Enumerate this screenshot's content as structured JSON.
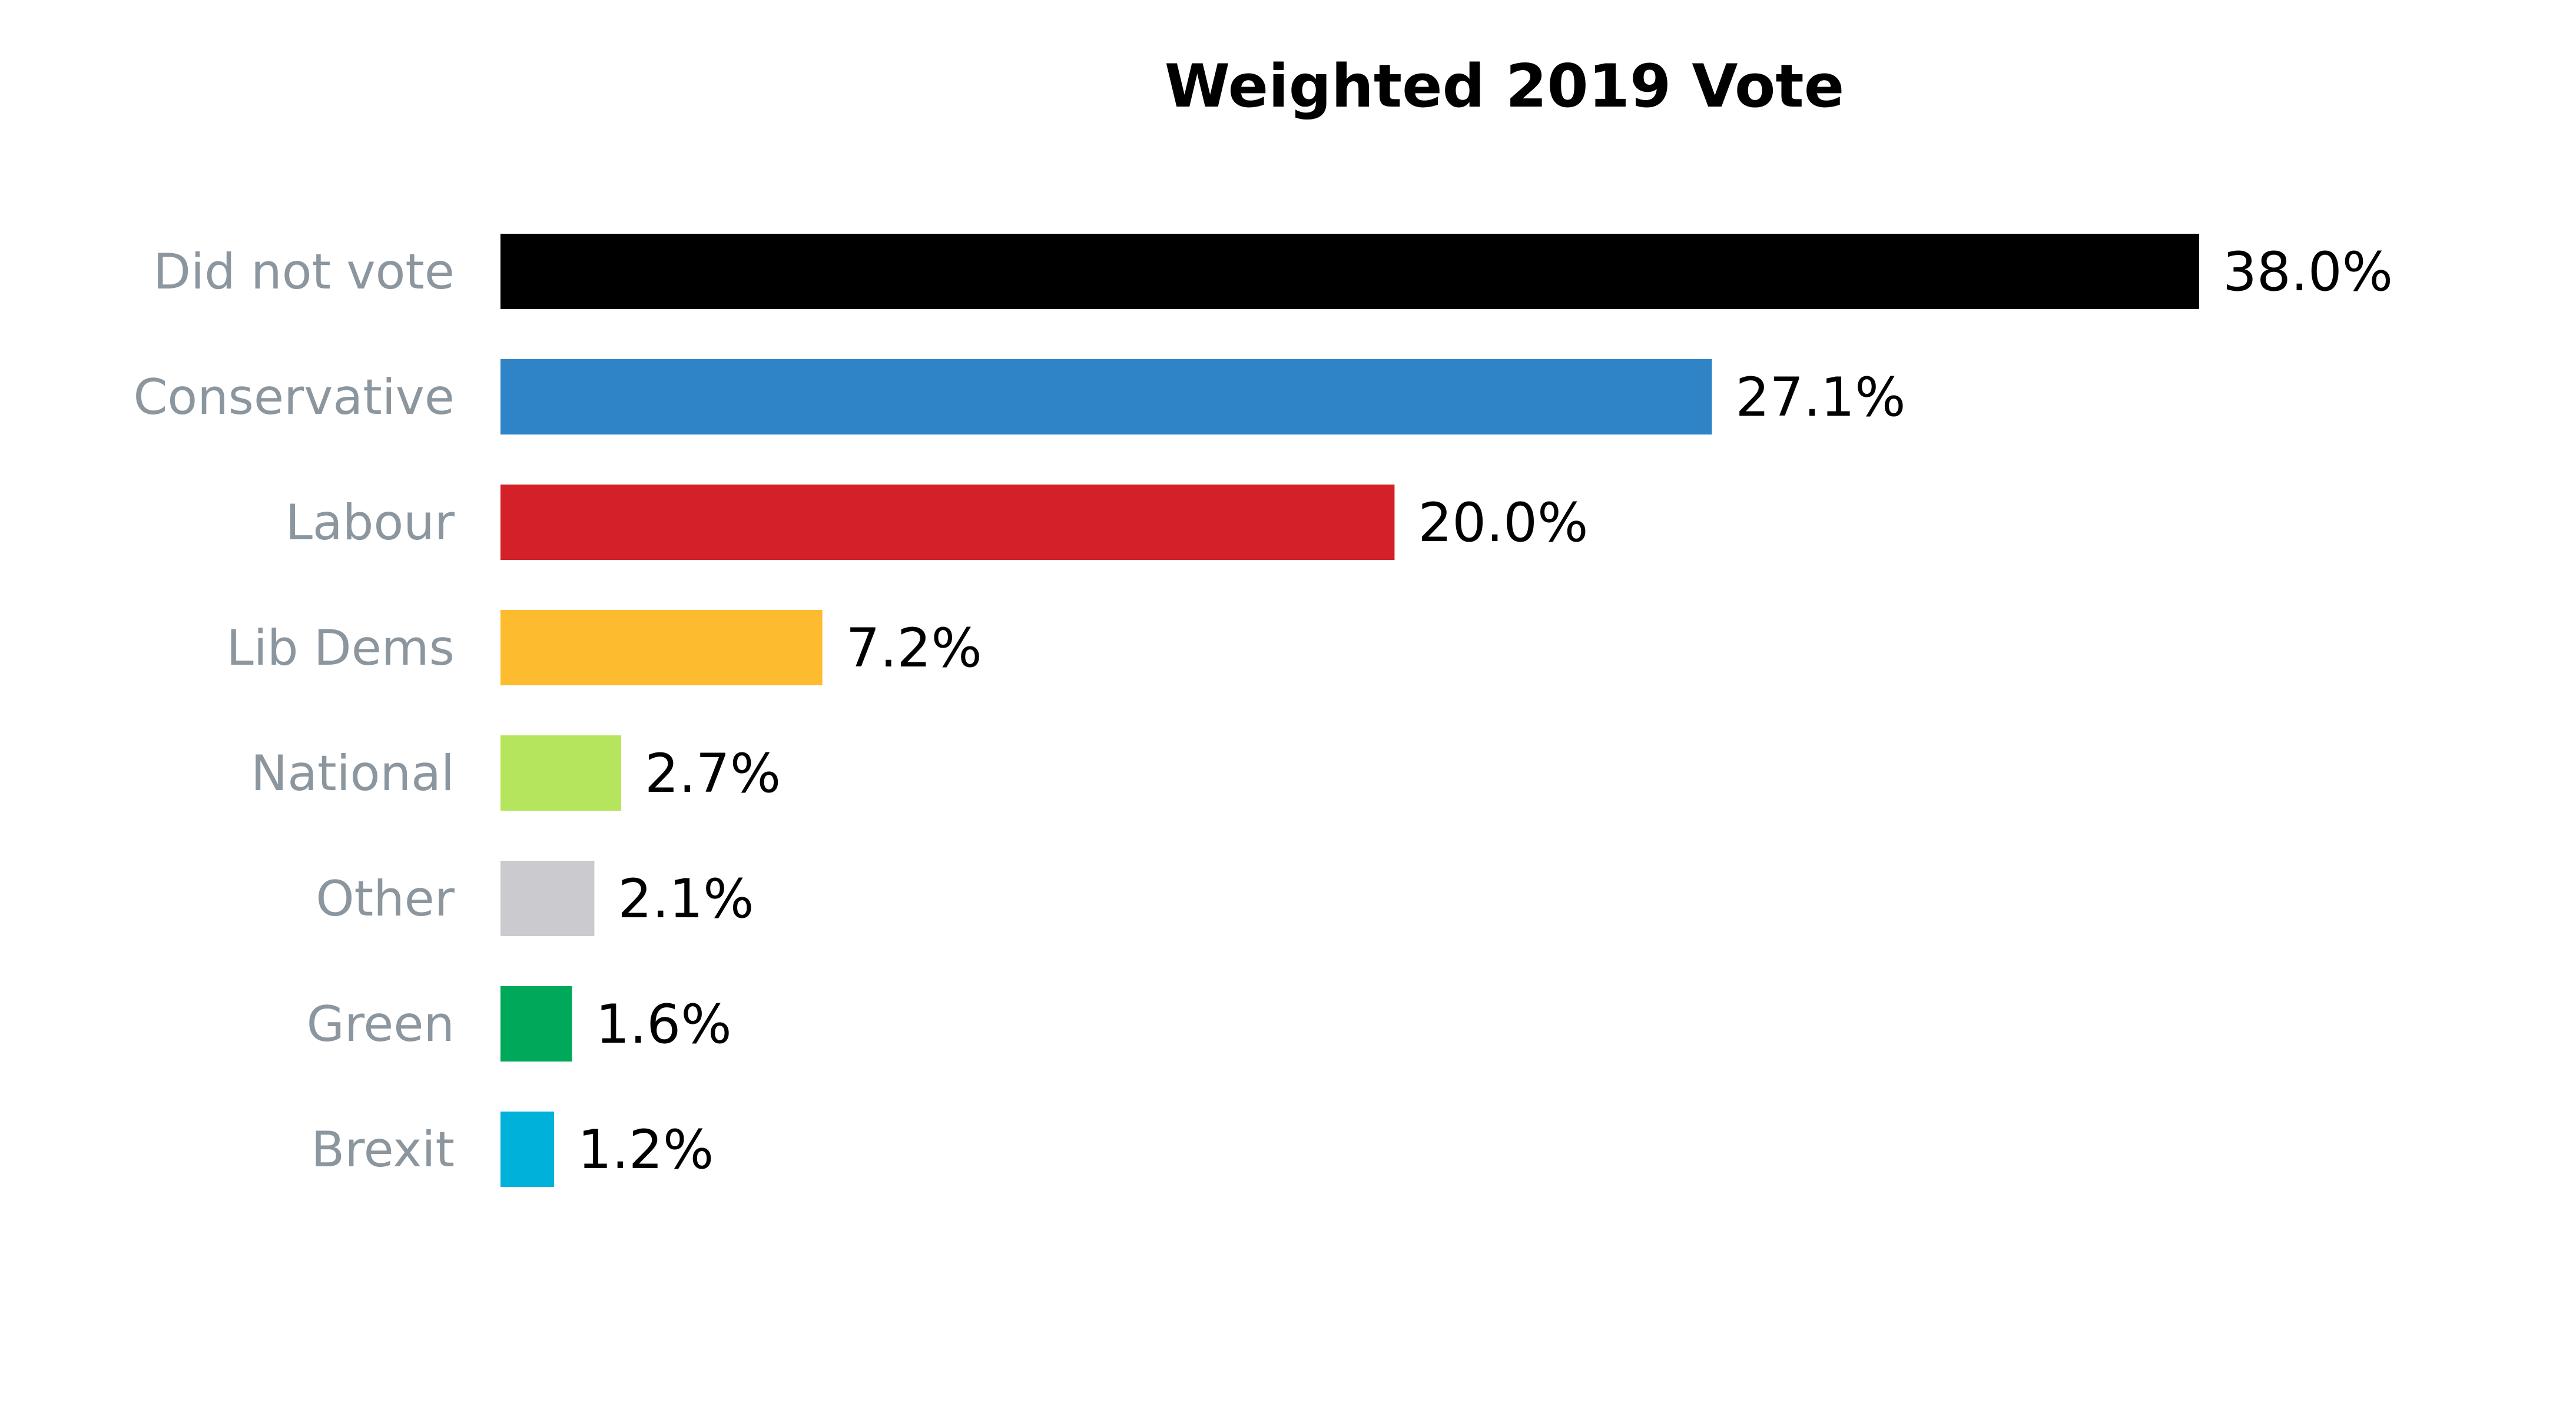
{
  "chart_data": {
    "type": "bar",
    "orientation": "horizontal",
    "title": "Weighted 2019 Vote",
    "xlabel": "",
    "ylabel": "",
    "categories": [
      "Did not vote",
      "Conservative",
      "Labour",
      "Lib Dems",
      "National",
      "Other",
      "Green",
      "Brexit"
    ],
    "values": [
      38.0,
      27.1,
      20.0,
      7.2,
      2.7,
      2.1,
      1.6,
      1.2
    ],
    "value_labels": [
      "38.0%",
      "27.1%",
      "20.0%",
      "7.2%",
      "2.7%",
      "2.1%",
      "1.6%",
      "1.2%"
    ],
    "colors": [
      "#000000",
      "#2e84c6",
      "#d42028",
      "#fdbb30",
      "#b5e55c",
      "#cbcbcf",
      "#00a85a",
      "#00b1d9"
    ],
    "xlim": [
      0,
      38.0
    ],
    "grid": false,
    "legend": "none"
  }
}
